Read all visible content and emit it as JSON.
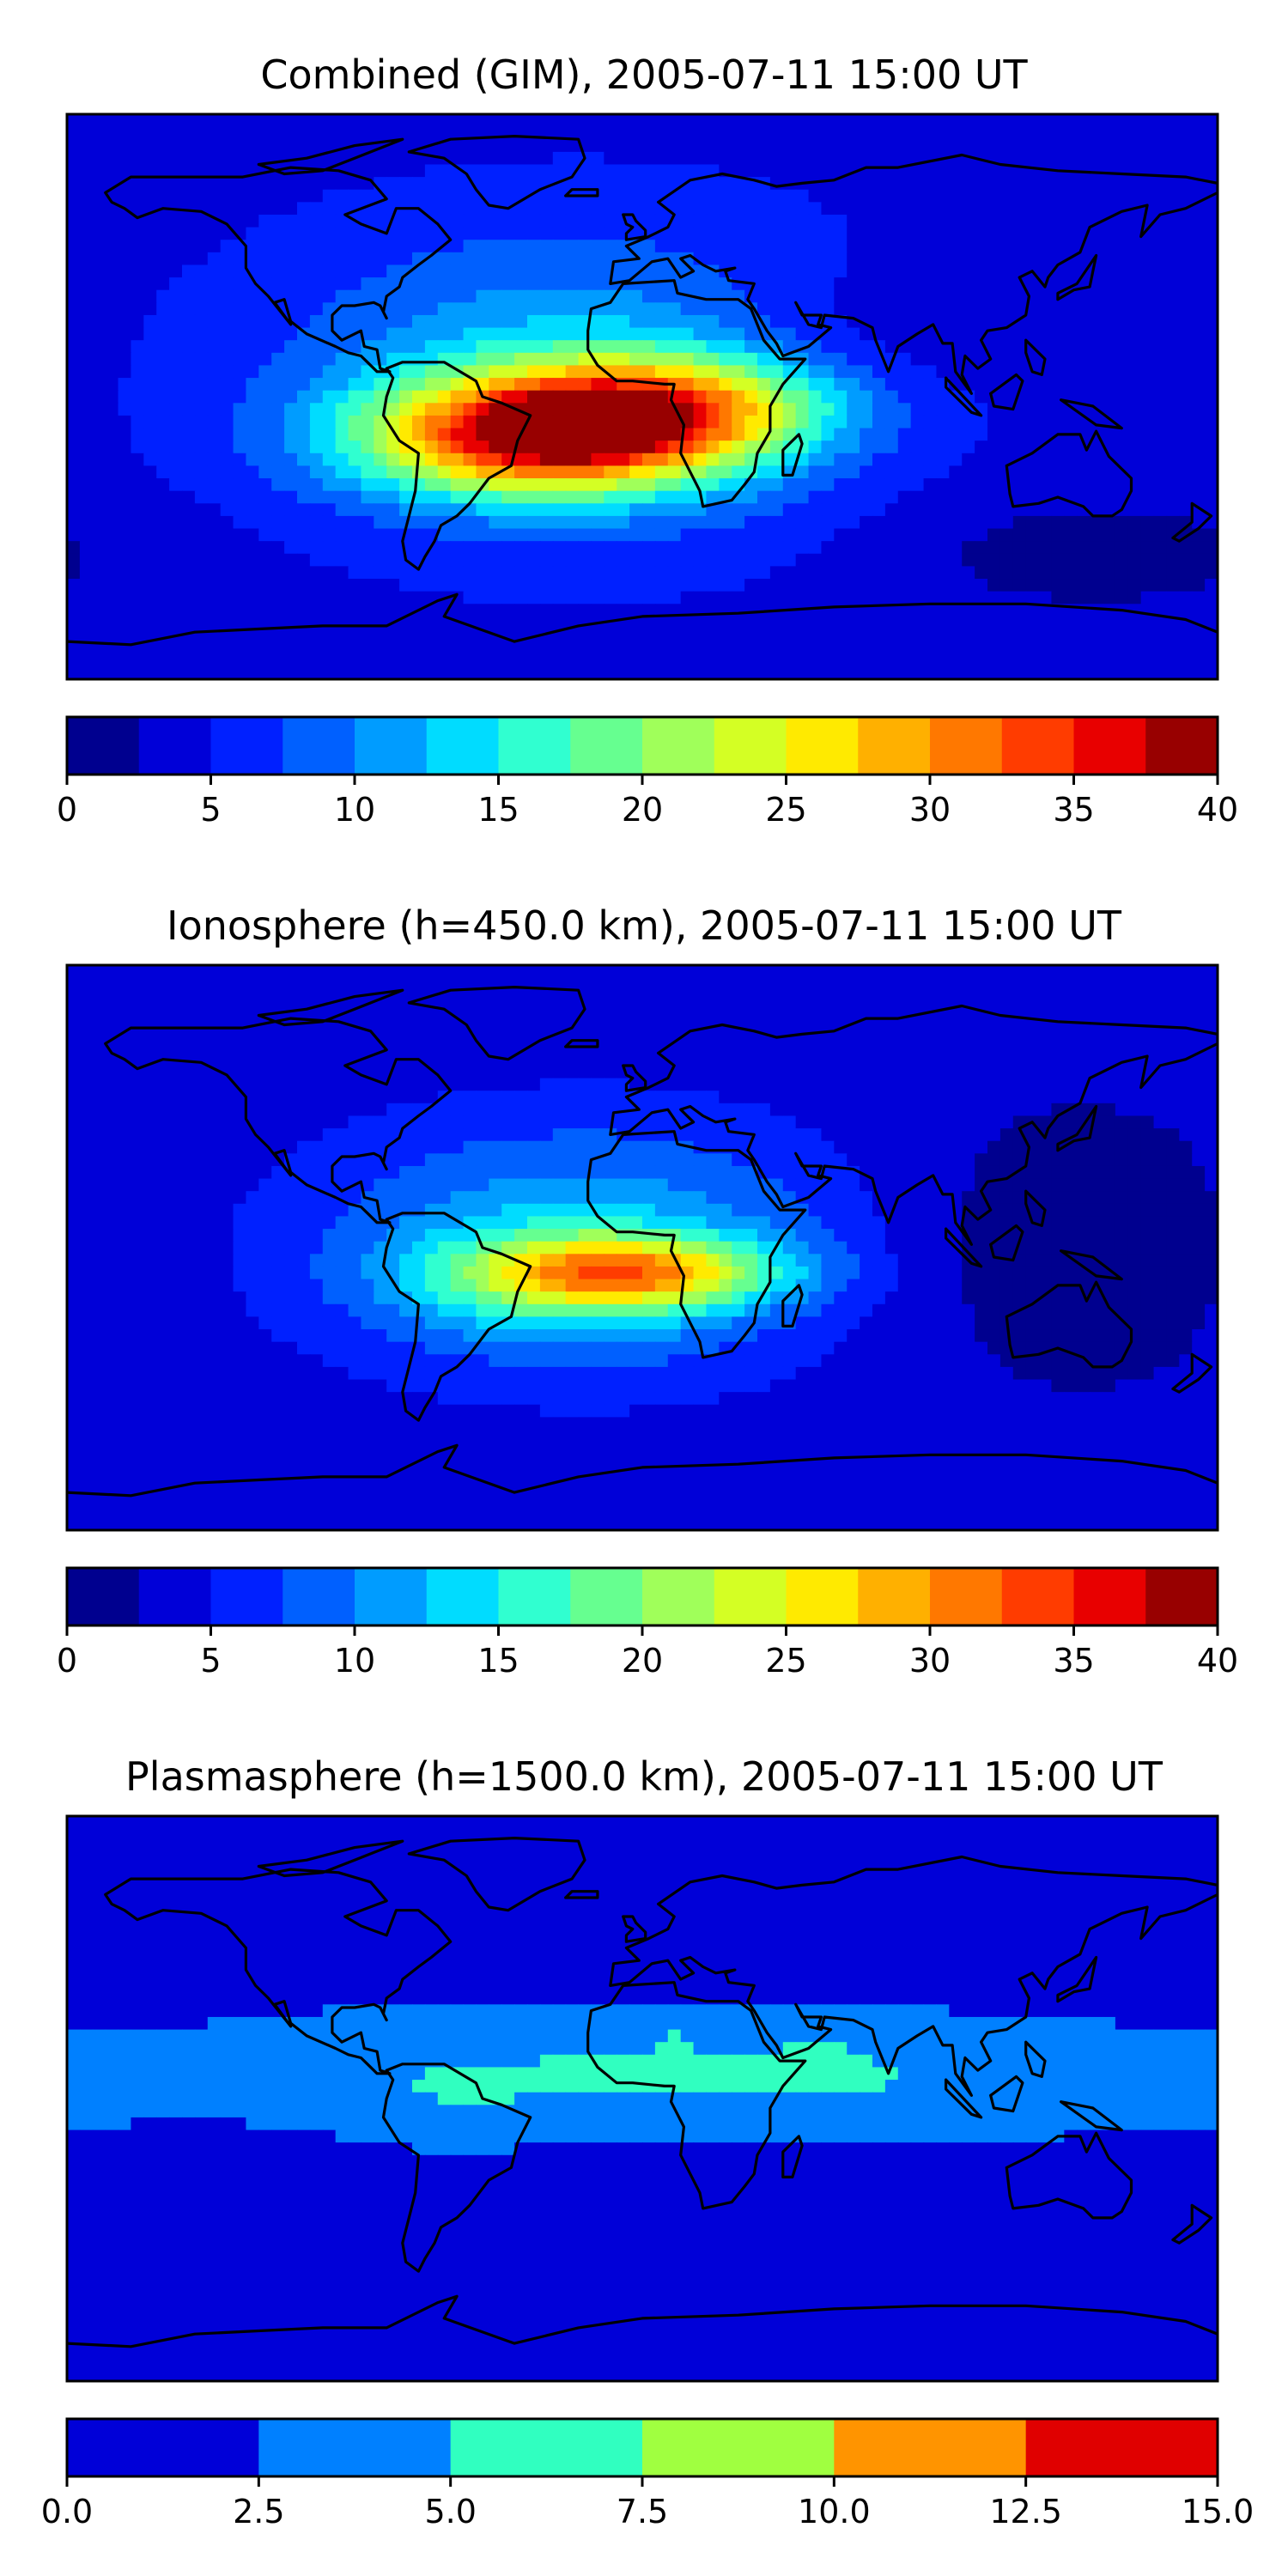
{
  "chart_data": [
    {
      "type": "heatmap",
      "title": "Combined (GIM), 2005-07-11 15:00 UT",
      "levels": [
        0,
        2.5,
        5,
        7.5,
        10,
        12.5,
        15,
        17.5,
        20,
        22.5,
        25,
        27.5,
        30,
        32.5,
        35,
        37.5,
        40
      ],
      "colors": [
        "#00008f",
        "#0000d8",
        "#0020ff",
        "#0060ff",
        "#009cff",
        "#00dcff",
        "#30ffd0",
        "#66ff90",
        "#a0ff5a",
        "#d4ff24",
        "#ffea00",
        "#ffb000",
        "#ff7800",
        "#ff3c00",
        "#e80000",
        "#980000"
      ],
      "colorbar_ticks": [
        "0",
        "5",
        "10",
        "15",
        "20",
        "25",
        "30",
        "35",
        "40"
      ],
      "colorbar_tick_values": [
        0,
        5,
        10,
        15,
        20,
        25,
        30,
        35,
        40
      ],
      "features": [
        {
          "lon": -32,
          "lat": -13,
          "amp": 27,
          "rlon": 55,
          "rlat": 18
        },
        {
          "lon": 10,
          "lat": -3,
          "amp": 18,
          "rlon": 55,
          "rlat": 17
        },
        {
          "lon": -20,
          "lat": 5,
          "amp": 9,
          "rlon": 95,
          "rlat": 48
        },
        {
          "lon": 60,
          "lat": 10,
          "amp": -4,
          "rlon": 50,
          "rlat": 30
        },
        {
          "lon": 140,
          "lat": -50,
          "amp": -3,
          "rlon": 60,
          "rlat": 18
        }
      ],
      "background": 4
    },
    {
      "type": "heatmap",
      "title": "Ionosphere  (h=450.0 km), 2005-07-11 15:00 UT",
      "levels": [
        0,
        2.5,
        5,
        7.5,
        10,
        12.5,
        15,
        17.5,
        20,
        22.5,
        25,
        27.5,
        30,
        32.5,
        35,
        37.5,
        40
      ],
      "colors": [
        "#00008f",
        "#0000d8",
        "#0020ff",
        "#0060ff",
        "#009cff",
        "#00dcff",
        "#30ffd0",
        "#66ff90",
        "#a0ff5a",
        "#d4ff24",
        "#ffea00",
        "#ffb000",
        "#ff7800",
        "#ff3c00",
        "#e80000",
        "#980000"
      ],
      "colorbar_ticks": [
        "0",
        "5",
        "10",
        "15",
        "20",
        "25",
        "30",
        "35",
        "40"
      ],
      "colorbar_tick_values": [
        0,
        5,
        10,
        15,
        20,
        25,
        30,
        35,
        40
      ],
      "features": [
        {
          "lon": 0,
          "lat": -8,
          "amp": 16,
          "rlon": 45,
          "rlat": 11
        },
        {
          "lon": -30,
          "lat": -10,
          "amp": 8,
          "rlon": 45,
          "rlat": 16
        },
        {
          "lon": -18,
          "lat": 0,
          "amp": 9.5,
          "rlon": 90,
          "rlat": 42
        },
        {
          "lon": 120,
          "lat": 0,
          "amp": -2.5,
          "rlon": 60,
          "rlat": 40
        }
      ],
      "background": 3
    },
    {
      "type": "heatmap",
      "title": "Plasmasphere (h=1500.0 km), 2005-07-11 15:00 UT",
      "levels": [
        0.0,
        2.5,
        5.0,
        7.5,
        10.0,
        12.5,
        15.0
      ],
      "colors": [
        "#0000d8",
        "#0080ff",
        "#30ffc0",
        "#a0ff40",
        "#ff9400",
        "#e00000"
      ],
      "colorbar_ticks": [
        "0.0",
        "2.5",
        "5.0",
        "7.5",
        "10.0",
        "12.5",
        "15.0"
      ],
      "colorbar_tick_values": [
        0,
        2.5,
        5,
        7.5,
        10,
        12.5,
        15
      ],
      "features": [
        {
          "lon": 40,
          "lat": 5,
          "amp": 3.2,
          "rlon": 200,
          "rlat": 18
        },
        {
          "lon": 55,
          "lat": 12,
          "amp": 1.6,
          "rlon": 12,
          "rlat": 8
        },
        {
          "lon": 10,
          "lat": 20,
          "amp": 1.3,
          "rlon": 6,
          "rlat": 4
        },
        {
          "lon": -60,
          "lat": -5,
          "amp": 1.0,
          "rlon": 30,
          "rlat": 14
        },
        {
          "lon": -20,
          "lat": 18,
          "amp": 1.2,
          "rlon": 150,
          "rlat": 20
        }
      ],
      "background": 1.4
    }
  ]
}
